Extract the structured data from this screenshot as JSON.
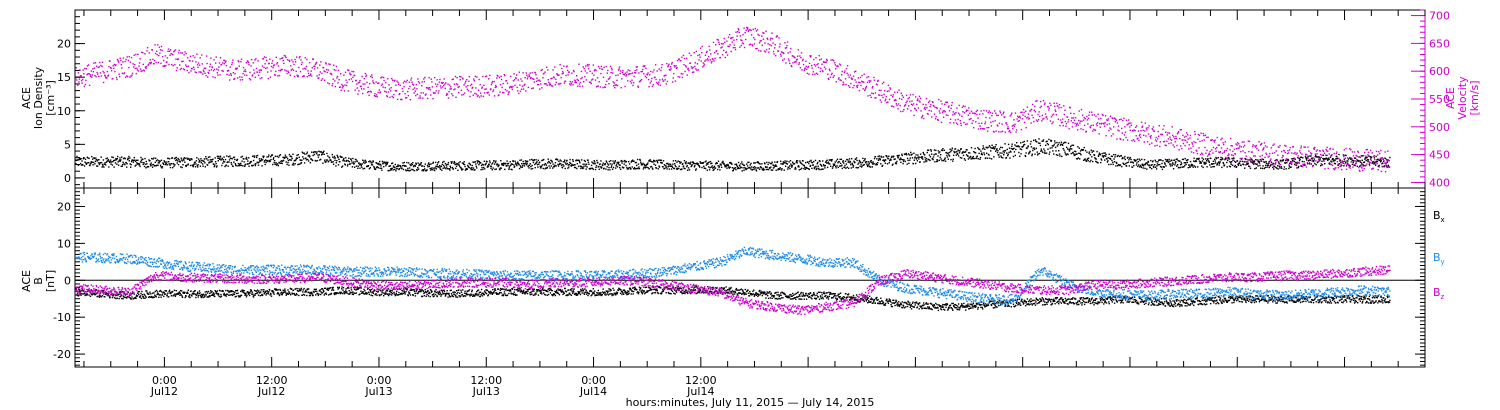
{
  "chart_data": [
    {
      "type": "scatter",
      "panel": "top",
      "left_axis": {
        "label_lines": [
          "ACE",
          "Ion Density",
          "[cm⁻³]"
        ],
        "ylim": [
          -1.5,
          25
        ],
        "ticks": [
          "0",
          "5",
          "10",
          "15",
          "20"
        ],
        "tick_values": [
          0,
          5,
          10,
          15,
          20
        ]
      },
      "right_axis": {
        "label_lines": [
          "ACE",
          "Velocity",
          "[km/s]"
        ],
        "ylim": [
          390,
          710
        ],
        "ticks": [
          "400",
          "450",
          "500",
          "550",
          "600",
          "650",
          "700"
        ],
        "tick_values": [
          400,
          450,
          500,
          550,
          600,
          650,
          700
        ],
        "color": "#cc00cc"
      },
      "series": [
        {
          "axis": "left",
          "color": "#000000",
          "x_hours": [
            0,
            6,
            9,
            12,
            18,
            24,
            27,
            30,
            33,
            36,
            42,
            48,
            51,
            54,
            57,
            60,
            63,
            66,
            72,
            75,
            78,
            81,
            84,
            87,
            90,
            93,
            96,
            99,
            102,
            105,
            108,
            111,
            114,
            117,
            120,
            123,
            126,
            129,
            132,
            135,
            138,
            141,
            144,
            147
          ],
          "values": [
            2.5,
            2.5,
            2.3,
            2.4,
            2.6,
            2.8,
            3.4,
            2.4,
            2.0,
            1.8,
            1.9,
            2.0,
            2.2,
            2.2,
            2.1,
            2.0,
            2.2,
            2.0,
            1.9,
            1.8,
            1.9,
            2.0,
            2.1,
            2.3,
            2.6,
            3.0,
            3.4,
            3.7,
            3.9,
            4.2,
            4.8,
            4.3,
            3.2,
            2.6,
            2.0,
            2.2,
            2.4,
            2.4,
            2.2,
            2.1,
            2.6,
            2.8,
            2.6,
            2.4
          ]
        },
        {
          "axis": "right",
          "color": "#cc00cc",
          "x_hours": [
            0,
            6,
            9,
            12,
            18,
            24,
            27,
            30,
            33,
            36,
            42,
            48,
            51,
            54,
            57,
            60,
            63,
            66,
            72,
            75,
            78,
            81,
            84,
            87,
            90,
            93,
            96,
            99,
            102,
            105,
            108,
            111,
            114,
            117,
            120,
            123,
            126,
            129,
            132,
            135,
            138,
            141,
            144,
            147
          ],
          "values": [
            590,
            610,
            630,
            618,
            602,
            612,
            603,
            585,
            575,
            568,
            572,
            576,
            586,
            594,
            594,
            590,
            592,
            595,
            640,
            665,
            650,
            620,
            608,
            588,
            565,
            542,
            532,
            522,
            513,
            508,
            532,
            518,
            508,
            497,
            489,
            480,
            470,
            461,
            455,
            451,
            447,
            444,
            441,
            438
          ]
        }
      ]
    },
    {
      "type": "scatter",
      "panel": "bottom",
      "left_axis": {
        "label_lines": [
          "ACE",
          "B",
          "[nT]"
        ],
        "ylim": [
          -23.5,
          25
        ],
        "ticks": [
          "-20",
          "-10",
          "0",
          "10",
          "20"
        ],
        "tick_values": [
          -20,
          -10,
          0,
          10,
          20
        ]
      },
      "series": [
        {
          "name": "B",
          "sub": "x",
          "color": "#000000",
          "x_hours": [
            0,
            6,
            9,
            12,
            18,
            24,
            27,
            30,
            33,
            36,
            42,
            48,
            51,
            54,
            57,
            60,
            63,
            66,
            72,
            75,
            78,
            81,
            84,
            87,
            90,
            93,
            96,
            99,
            102,
            105,
            108,
            111,
            114,
            117,
            120,
            123,
            126,
            129,
            132,
            135,
            138,
            141,
            144,
            147
          ],
          "values": [
            -3,
            -4,
            -3.5,
            -3.5,
            -3.5,
            -3,
            -3,
            -2.5,
            -3,
            -3,
            -3.5,
            -3,
            -3,
            -3,
            -3,
            -3,
            -2.5,
            -2.5,
            -2.5,
            -3,
            -4,
            -4,
            -4,
            -4.5,
            -5.5,
            -6.5,
            -7,
            -7,
            -6.5,
            -6,
            -5.5,
            -5.5,
            -5.5,
            -5,
            -5.5,
            -6,
            -5.5,
            -5,
            -5,
            -5,
            -5,
            -5,
            -5,
            -5
          ]
        },
        {
          "name": "B",
          "sub": "y",
          "color": "#1e8ae6",
          "x_hours": [
            0,
            6,
            9,
            12,
            18,
            24,
            27,
            30,
            33,
            36,
            42,
            48,
            51,
            54,
            57,
            60,
            63,
            66,
            72,
            75,
            78,
            81,
            84,
            87,
            90,
            93,
            96,
            99,
            102,
            105,
            108,
            111,
            114,
            117,
            120,
            123,
            126,
            129,
            132,
            135,
            138,
            141,
            144,
            147
          ],
          "values": [
            6.5,
            6,
            5,
            4,
            3,
            3,
            3,
            2.5,
            2.5,
            2.5,
            2,
            1.5,
            1.5,
            1.5,
            1.5,
            1.5,
            2,
            2.5,
            5,
            8,
            7,
            6,
            5,
            5,
            0,
            -2,
            -3,
            -4,
            -5,
            -5,
            3,
            -1,
            -3,
            -3.5,
            -4,
            -3.5,
            -3.5,
            -3,
            -3.5,
            -4,
            -3.5,
            -3,
            -2.5,
            -3
          ]
        },
        {
          "name": "B",
          "sub": "z",
          "color": "#cc00cc",
          "x_hours": [
            0,
            6,
            9,
            12,
            18,
            24,
            27,
            30,
            33,
            36,
            42,
            48,
            51,
            54,
            57,
            60,
            63,
            66,
            72,
            75,
            78,
            81,
            84,
            87,
            90,
            93,
            96,
            99,
            102,
            105,
            108,
            111,
            114,
            117,
            120,
            123,
            126,
            129,
            132,
            135,
            138,
            141,
            144,
            147
          ],
          "values": [
            -2,
            -3,
            1.5,
            1,
            0.5,
            0.5,
            1,
            0,
            -1,
            -1.5,
            -0.5,
            -0.5,
            -1,
            -0.5,
            -0.5,
            0,
            0,
            -1,
            -3,
            -6,
            -7,
            -8,
            -7,
            -6,
            0,
            2,
            1,
            0,
            -1,
            -2,
            -2.5,
            -2.5,
            -1,
            -1,
            -0.5,
            0,
            0.5,
            1,
            1,
            1.5,
            1.5,
            2,
            2.5,
            3
          ]
        }
      ]
    }
  ],
  "x_axis": {
    "range_hours": [
      0,
      151
    ],
    "start_hour_of_day": 14,
    "major_ticks": [
      {
        "hour": 10,
        "time": "0:00",
        "date": "Jul12"
      },
      {
        "hour": 22,
        "time": "12:00",
        "date": "Jul12"
      },
      {
        "hour": 34,
        "time": "0:00",
        "date": "Jul13"
      },
      {
        "hour": 46,
        "time": "12:00",
        "date": "Jul13"
      },
      {
        "hour": 58,
        "time": "0:00",
        "date": "Jul14"
      },
      {
        "hour": 70,
        "time": "12:00",
        "date": "Jul14"
      }
    ],
    "label": "hours:minutes, July 11, 2015 — July 14, 2015"
  }
}
